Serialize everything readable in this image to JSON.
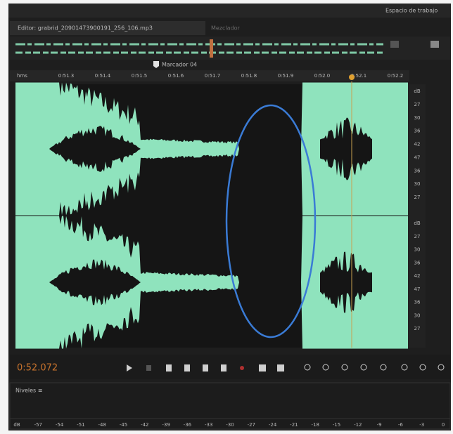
{
  "header": {
    "workspace": "Espacio de trabajo"
  },
  "tabs": {
    "editor": "Editor: grabrid_20901473900191_256_106.mp3",
    "mixer": "Mezclador"
  },
  "marker": "Marcador 04",
  "ruler": {
    "unit": "hms",
    "labels": [
      "0:51.3",
      "0:51.4",
      "0:51.5",
      "0:51.6",
      "0:51.7",
      "0:51.8",
      "0:51.9",
      "0:52.0",
      "0:52.1",
      "0:52.2"
    ]
  },
  "db_scale": {
    "channel_1": [
      "dB",
      "27",
      "30",
      "36",
      "42",
      "47",
      "36",
      "30",
      "27"
    ],
    "channel_2": [
      "dB",
      "27",
      "30",
      "36",
      "42",
      "47",
      "36",
      "30",
      "27"
    ]
  },
  "time_display": "0:52.072",
  "levels": {
    "title": "Niveles ≡",
    "scale": [
      "dB",
      "-57",
      "-54",
      "-51",
      "-48",
      "-45",
      "-42",
      "-39",
      "-36",
      "-33",
      "-30",
      "-27",
      "-24",
      "-21",
      "-18",
      "-15",
      "-12",
      "-9",
      "-6",
      "-3",
      "0"
    ]
  }
}
